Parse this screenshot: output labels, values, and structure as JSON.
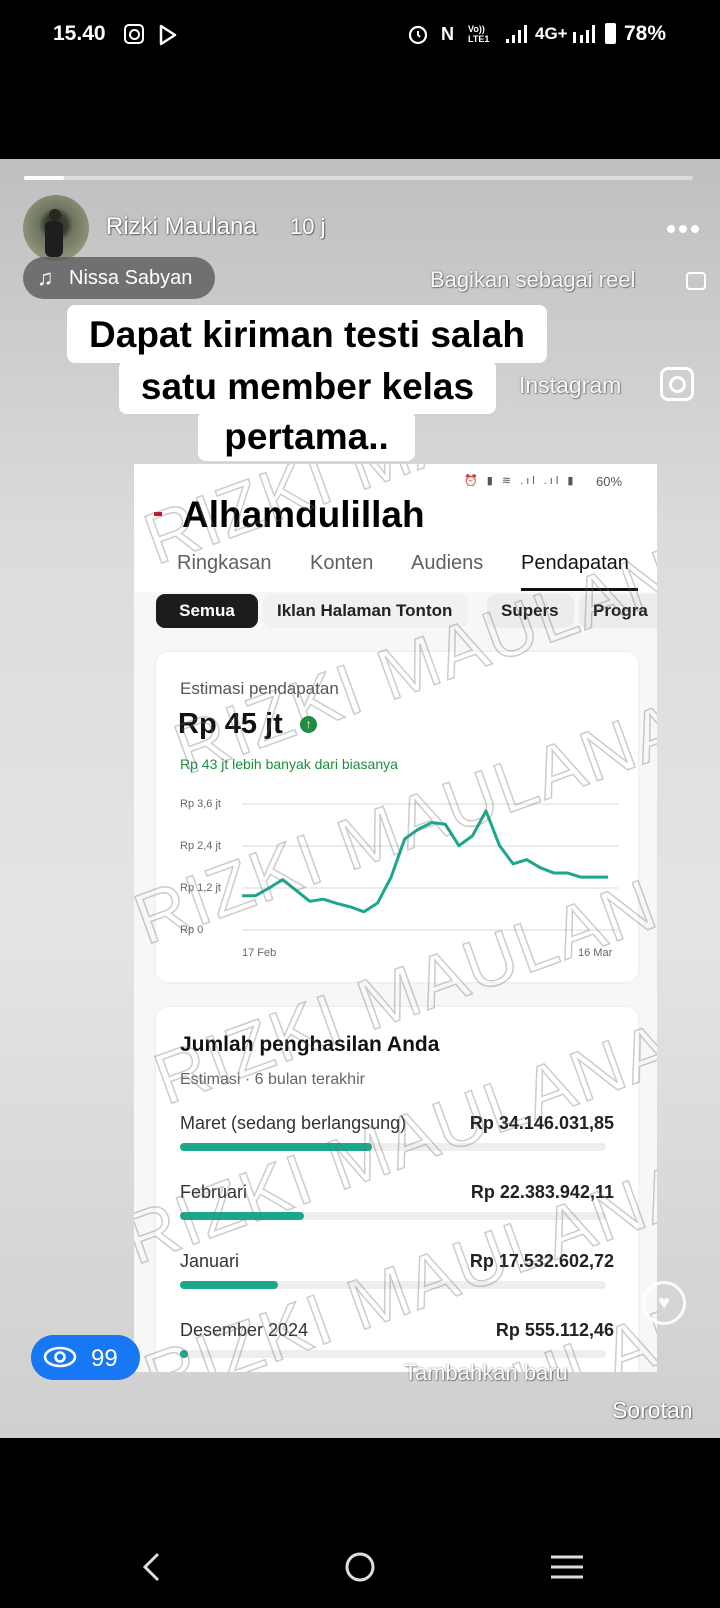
{
  "status_bar": {
    "time": "15.40",
    "left_icons": [
      "instagram-icon",
      "play-store-icon"
    ],
    "right_icons": [
      "alarm-icon",
      "nfc-icon",
      "volte-icon",
      "signal-icon",
      "signal-icon"
    ],
    "network": "4G+",
    "volte": "Vo)) LTE1",
    "battery": "78%",
    "battery_level": 0.78
  },
  "story": {
    "progress": 0.06,
    "author": "Rizki Maulana",
    "time_ago": "10 j",
    "music": "Nissa Sabyan",
    "caption_lines": [
      "Dapat kiriman testi salah",
      "satu member kelas",
      "pertama.."
    ],
    "share_reel": "Bagikan sebagai reel",
    "instagram": "Instagram",
    "views": "99",
    "add_new": "Tambahkan baru",
    "highlight": "Sorotan"
  },
  "screenshot": {
    "overlay_text": "Alhamdulillah",
    "battery": "60%",
    "tabs": [
      "Ringkasan",
      "Konten",
      "Audiens",
      "Pendapatan"
    ],
    "active_tab": "Pendapatan",
    "chips": [
      "Semua",
      "Iklan Halaman Tonton",
      "Supers",
      "Progra"
    ],
    "active_chip": "Semua",
    "watermark": "RIZKI MAULANA",
    "estimate_card": {
      "label": "Estimasi pendapatan",
      "amount": "Rp 45 jt",
      "comparison": "Rp 43 jt lebih banyak dari biasanya",
      "accent": "#1a8f3c"
    },
    "earnings_card": {
      "title": "Jumlah penghasilan Anda",
      "subtitle": "Estimasi · 6 bulan terakhir",
      "rows": [
        {
          "label": "Maret (sedang berlangsung)",
          "value": "Rp 34.146.031,85",
          "fill": 0.45
        },
        {
          "label": "Februari",
          "value": "Rp 22.383.942,11",
          "fill": 0.29
        },
        {
          "label": "Januari",
          "value": "Rp 17.532.602,72",
          "fill": 0.23
        },
        {
          "label": "Desember 2024",
          "value": "Rp 555.112,46",
          "fill": 0.01
        }
      ],
      "bar_color": "#1aa78c"
    }
  },
  "chart_data": {
    "type": "line",
    "x_tick_labels": [
      "17 Feb",
      "16 Mar"
    ],
    "y_tick_labels": [
      "Rp 3,6 jt",
      "Rp 2,4 jt",
      "Rp 1,2 jt",
      "Rp 0"
    ],
    "y_ticks": [
      3.6,
      2.4,
      1.2,
      0
    ],
    "ylim": [
      0,
      3.6
    ],
    "y_unit": "jt",
    "grid": true,
    "color": "#1aa78c",
    "series": [
      {
        "values": [
          0.98,
          0.98,
          1.2,
          1.44,
          1.13,
          0.82,
          0.88,
          0.76,
          0.66,
          0.52,
          0.77,
          1.51,
          2.6,
          2.88,
          3.07,
          3.02,
          2.41,
          2.69,
          3.4,
          2.41,
          1.89,
          2.01,
          1.78,
          1.63,
          1.63,
          1.51,
          1.51,
          1.51
        ]
      }
    ]
  }
}
